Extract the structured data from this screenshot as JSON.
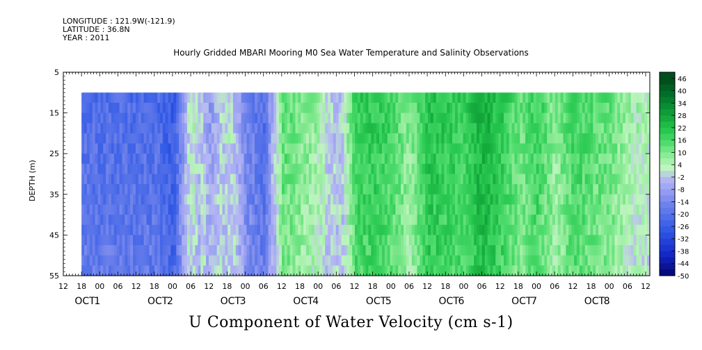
{
  "header": {
    "longitude": "LONGITUDE : 121.9W(-121.9)",
    "latitude": "LATITUDE : 36.8N",
    "year": "YEAR : 2011"
  },
  "chart_data": {
    "type": "heatmap",
    "title": "Hourly Gridded MBARI Mooring M0 Sea Water Temperature and Salinity Observations",
    "variable_label": "U Component of Water Velocity (cm s-1)",
    "ylabel": "DEPTH (m)",
    "ylim": [
      55,
      5
    ],
    "y_ticks": [
      5,
      15,
      25,
      35,
      45,
      55
    ],
    "x_hour_ticks": [
      "12",
      "18",
      "00",
      "06",
      "12",
      "18",
      "00",
      "06",
      "12",
      "18",
      "00",
      "06",
      "12",
      "18",
      "00",
      "06",
      "12",
      "18",
      "00",
      "06",
      "12",
      "18",
      "00",
      "06",
      "12",
      "18",
      "00",
      "06",
      "12",
      "18",
      "00",
      "06",
      "12"
    ],
    "x_day_labels": [
      {
        "month": "OCT",
        "day": "1"
      },
      {
        "month": "OCT",
        "day": "2"
      },
      {
        "month": "OCT",
        "day": "3"
      },
      {
        "month": "OCT",
        "day": "4"
      },
      {
        "month": "OCT",
        "day": "5"
      },
      {
        "month": "OCT",
        "day": "6"
      },
      {
        "month": "OCT",
        "day": "7"
      },
      {
        "month": "OCT",
        "day": "8"
      }
    ],
    "data_depth_range": [
      10,
      55
    ],
    "colorbar_levels": [
      46,
      40,
      34,
      28,
      22,
      16,
      10,
      4,
      -2,
      -8,
      -14,
      -20,
      -26,
      -32,
      -38,
      -44,
      -50
    ],
    "approx_u_by_time": [
      {
        "t": "OCT 1 18:00",
        "u": -20
      },
      {
        "t": "OCT 2 00:00",
        "u": -26
      },
      {
        "t": "OCT 2 06:00",
        "u": 6
      },
      {
        "t": "OCT 2 12:00",
        "u": -8
      },
      {
        "t": "OCT 2 18:00",
        "u": 4
      },
      {
        "t": "OCT 3 00:00",
        "u": -14
      },
      {
        "t": "OCT 3 06:00",
        "u": -20
      },
      {
        "t": "OCT 3 12:00",
        "u": 16
      },
      {
        "t": "OCT 3 18:00",
        "u": 12
      },
      {
        "t": "OCT 4 00:00",
        "u": 8
      },
      {
        "t": "OCT 4 06:00",
        "u": -4
      },
      {
        "t": "OCT 4 12:00",
        "u": 20
      },
      {
        "t": "OCT 4 18:00",
        "u": 22
      },
      {
        "t": "OCT 5 00:00",
        "u": 18
      },
      {
        "t": "OCT 5 06:00",
        "u": 10
      },
      {
        "t": "OCT 5 12:00",
        "u": 24
      },
      {
        "t": "OCT 5 18:00",
        "u": 22
      },
      {
        "t": "OCT 6 00:00",
        "u": 20
      },
      {
        "t": "OCT 6 06:00",
        "u": 28
      },
      {
        "t": "OCT 6 12:00",
        "u": 22
      },
      {
        "t": "OCT 6 18:00",
        "u": 14
      },
      {
        "t": "OCT 7 00:00",
        "u": 20
      },
      {
        "t": "OCT 7 06:00",
        "u": 10
      },
      {
        "t": "OCT 7 12:00",
        "u": 20
      },
      {
        "t": "OCT 7 18:00",
        "u": 16
      },
      {
        "t": "OCT 8 00:00",
        "u": 14
      },
      {
        "t": "OCT 8 06:00",
        "u": 8
      },
      {
        "t": "OCT 8 12:00",
        "u": 6
      }
    ],
    "colors": {
      "strong_positive": "#005020",
      "positive": "#22c84a",
      "weak_positive": "#b8f0b8",
      "weak_negative": "#b0b0f0",
      "negative": "#3060e8",
      "strong_negative": "#000070"
    }
  }
}
